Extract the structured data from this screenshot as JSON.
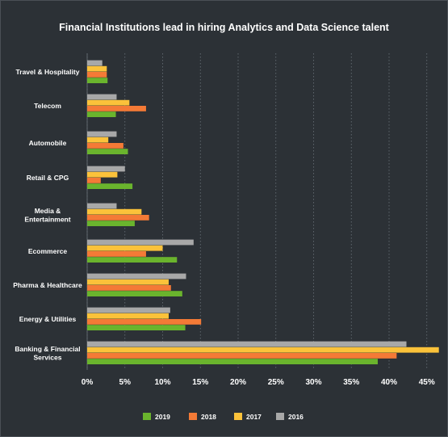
{
  "chart_data": {
    "type": "bar",
    "orientation": "horizontal",
    "title": "Financial Institutions lead in hiring Analytics and Data Science talent",
    "categories": [
      "Travel & Hospitality",
      "Telecom",
      "Automobile",
      "Retail & CPG",
      "Media & Entertainment",
      "Ecommerce",
      "Pharma & Healthcare",
      "Energy & Utilities",
      "Banking & Financial Services"
    ],
    "series": [
      {
        "name": "2019",
        "color": "#6ab42d",
        "values": [
          2.7,
          3.8,
          5.4,
          6.0,
          6.3,
          11.9,
          12.6,
          13.0,
          38.5
        ]
      },
      {
        "name": "2018",
        "color": "#f47a36",
        "values": [
          2.6,
          7.8,
          4.8,
          1.8,
          8.2,
          7.8,
          11.1,
          15.1,
          41.0
        ]
      },
      {
        "name": "2017",
        "color": "#fbc23a",
        "values": [
          2.6,
          5.6,
          2.8,
          4.0,
          7.2,
          10.0,
          10.8,
          10.8,
          46.6
        ]
      },
      {
        "name": "2016",
        "color": "#a8a8a8",
        "values": [
          2.0,
          3.9,
          3.9,
          5.0,
          3.9,
          14.1,
          13.1,
          11.0,
          42.3
        ]
      }
    ],
    "xlim": [
      0,
      47
    ],
    "xticks": [
      "0%",
      "5%",
      "10%",
      "15%",
      "20%",
      "25%",
      "30%",
      "35%",
      "40%",
      "45%"
    ],
    "grid": "vertical-dotted",
    "legend": "bottom-center"
  }
}
